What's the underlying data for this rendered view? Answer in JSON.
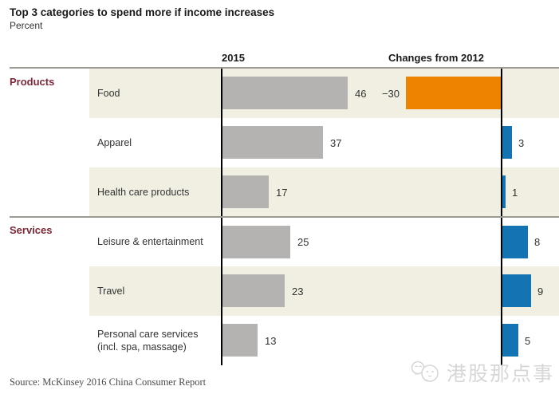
{
  "header": {
    "title": "Top 3 categories to spend more if income increases",
    "subtitle": "Percent"
  },
  "columns": {
    "col2015": "2015",
    "colChanges": "Changes from 2012"
  },
  "sections": [
    {
      "label": "Products"
    },
    {
      "label": "Services"
    }
  ],
  "chart_data": {
    "type": "bar",
    "orientation": "horizontal",
    "title": "Top 3 categories to spend more if income increases",
    "value_unit": "Percent",
    "categories": [
      "Food",
      "Apparel",
      "Health care products",
      "Leisure & entertainment",
      "Travel",
      "Personal care services (incl. spa, massage)"
    ],
    "category_sections": [
      "Products",
      "Products",
      "Products",
      "Services",
      "Services",
      "Services"
    ],
    "series": [
      {
        "name": "2015",
        "values": [
          46,
          37,
          17,
          25,
          23,
          13
        ],
        "display": [
          "46",
          "37",
          "17",
          "25",
          "23",
          "13"
        ],
        "color": "#b4b3b2"
      },
      {
        "name": "Changes from 2012",
        "values": [
          -30,
          3,
          1,
          8,
          9,
          5
        ],
        "display": [
          "−30",
          "3",
          "1",
          "8",
          "9",
          "5"
        ],
        "color_positive": "#1373b3",
        "color_negative": "#ee8300"
      }
    ],
    "legend_position": "none",
    "grid": false
  },
  "footer": {
    "source": "Source: McKinsey 2016 China Consumer Report"
  },
  "watermark": {
    "text": "港股那点事"
  },
  "colors": {
    "bar_gray": "#b4b3b2",
    "accent_blue": "#1373b3",
    "accent_orange": "#ee8300",
    "stripe_beige": "#f0efe2",
    "section_maroon": "#7d2838",
    "rule_gray": "#9b9b94"
  }
}
